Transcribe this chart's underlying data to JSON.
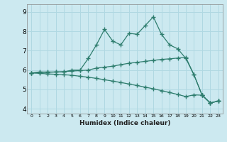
{
  "xlabel": "Humidex (Indice chaleur)",
  "bg_color": "#cce9f0",
  "grid_color": "#b0d8e2",
  "line_color": "#2e7d6e",
  "xlim": [
    -0.5,
    23.5
  ],
  "ylim": [
    3.75,
    9.4
  ],
  "xticks": [
    0,
    1,
    2,
    3,
    4,
    5,
    6,
    7,
    8,
    9,
    10,
    11,
    12,
    13,
    14,
    15,
    16,
    17,
    18,
    19,
    20,
    21,
    22,
    23
  ],
  "yticks": [
    4,
    5,
    6,
    7,
    8,
    9
  ],
  "line1_x": [
    0,
    1,
    2,
    3,
    4,
    5,
    6,
    7,
    8,
    9,
    10,
    11,
    12,
    13,
    14,
    15,
    16,
    17,
    18,
    19,
    20,
    21,
    22,
    23
  ],
  "line1_y": [
    5.85,
    5.9,
    5.9,
    5.9,
    5.9,
    6.0,
    6.0,
    6.6,
    7.3,
    8.1,
    7.5,
    7.3,
    7.9,
    7.85,
    8.3,
    8.75,
    7.85,
    7.3,
    7.1,
    6.6,
    5.75,
    4.7,
    4.3,
    4.4
  ],
  "line2_x": [
    0,
    1,
    2,
    3,
    4,
    5,
    6,
    7,
    8,
    9,
    10,
    11,
    12,
    13,
    14,
    15,
    16,
    17,
    18,
    19,
    20,
    21,
    22,
    23
  ],
  "line2_y": [
    5.85,
    5.87,
    5.88,
    5.9,
    5.92,
    5.95,
    5.97,
    6.0,
    6.1,
    6.15,
    6.2,
    6.28,
    6.35,
    6.4,
    6.45,
    6.5,
    6.55,
    6.58,
    6.62,
    6.65,
    5.75,
    4.7,
    4.3,
    4.4
  ],
  "line3_x": [
    0,
    1,
    2,
    3,
    4,
    5,
    6,
    7,
    8,
    9,
    10,
    11,
    12,
    13,
    14,
    15,
    16,
    17,
    18,
    19,
    20,
    21,
    22,
    23
  ],
  "line3_y": [
    5.85,
    5.83,
    5.8,
    5.78,
    5.76,
    5.73,
    5.68,
    5.63,
    5.57,
    5.5,
    5.43,
    5.36,
    5.28,
    5.2,
    5.12,
    5.03,
    4.94,
    4.84,
    4.74,
    4.63,
    4.72,
    4.7,
    4.3,
    4.4
  ]
}
